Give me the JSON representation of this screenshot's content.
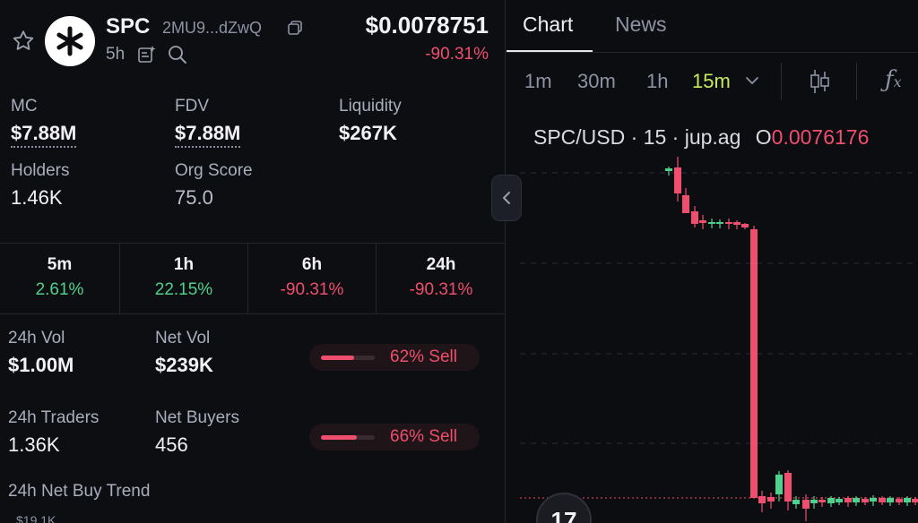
{
  "token": {
    "symbol": "SPC",
    "address": "2MU9...dZwQ",
    "age": "5h",
    "price": "$0.0078751",
    "price_change": "-90.31%"
  },
  "stats": {
    "mc_label": "MC",
    "mc_value": "$7.88M",
    "fdv_label": "FDV",
    "fdv_value": "$7.88M",
    "liquidity_label": "Liquidity",
    "liquidity_value": "$267K",
    "holders_label": "Holders",
    "holders_value": "1.46K",
    "org_label": "Org Score",
    "org_value": "75.0"
  },
  "timeframes": [
    {
      "label": "5m",
      "change": "2.61%",
      "dir": "pos"
    },
    {
      "label": "1h",
      "change": "22.15%",
      "dir": "pos"
    },
    {
      "label": "6h",
      "change": "-90.31%",
      "dir": "neg"
    },
    {
      "label": "24h",
      "change": "-90.31%",
      "dir": "neg"
    }
  ],
  "volume": {
    "vol_label": "24h Vol",
    "vol_value": "$1.00M",
    "netvol_label": "Net Vol",
    "netvol_value": "$239K",
    "vol_sell_pct": 62,
    "vol_sell_text": "62% Sell",
    "traders_label": "24h Traders",
    "traders_value": "1.36K",
    "netbuyers_label": "Net Buyers",
    "netbuyers_value": "456",
    "traders_sell_pct": 66,
    "traders_sell_text": "66% Sell",
    "trend_label": "24h Net Buy Trend",
    "trend_axis": "$19.1K"
  },
  "tabs": {
    "chart": "Chart",
    "news": "News"
  },
  "intervals": [
    "1m",
    "30m",
    "1h",
    "15m"
  ],
  "chart": {
    "pair": "SPC/USD · 15 · jup.ag",
    "o_label": "O",
    "o_value": "0.0076176",
    "tv_logo": "17"
  },
  "colors": {
    "up": "#4ed18c",
    "down": "#ef4e6e",
    "accent": "#c6ec5d"
  }
}
